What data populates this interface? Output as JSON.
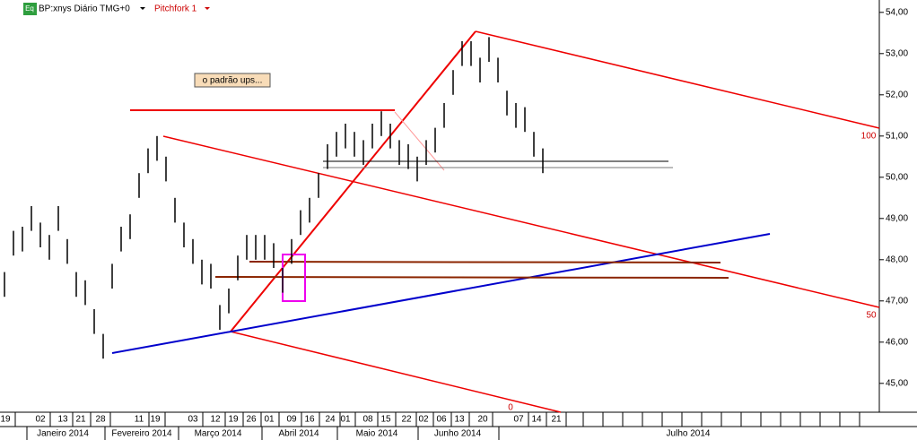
{
  "header": {
    "icon": "Eq",
    "symbol": "BP:xnys Diário TMG+0",
    "tool": "Pitchfork 1"
  },
  "annotation": "o padrão ups...",
  "pitchfork_labels": [
    "100",
    "50",
    "0"
  ],
  "chart_data": {
    "type": "range-bar",
    "high": [
      47.7,
      48.7,
      48.8,
      49.3,
      48.9,
      48.6,
      49.3,
      48.5,
      47.7,
      47.5,
      46.8,
      46.2,
      47.9,
      48.8,
      49.1,
      50.1,
      50.7,
      51.0,
      50.5,
      49.5,
      48.9,
      48.5,
      48.0,
      47.9,
      46.9,
      47.3,
      48.1,
      48.6,
      48.6,
      48.6,
      48.4,
      47.8,
      48.5,
      49.2,
      49.5,
      50.1,
      50.8,
      51.1,
      51.3,
      51.1,
      50.9,
      51.3,
      51.6,
      51.3,
      50.9,
      50.8,
      50.5,
      50.9,
      51.2,
      51.8,
      52.6,
      53.3,
      53.3,
      52.9,
      53.4,
      52.9,
      52.1,
      51.8,
      51.7,
      51.1,
      50.7
    ],
    "low": [
      47.1,
      48.1,
      48.2,
      48.7,
      48.3,
      48.0,
      48.7,
      47.9,
      47.1,
      46.9,
      46.2,
      45.6,
      47.3,
      48.2,
      48.5,
      49.5,
      50.1,
      50.4,
      49.9,
      48.9,
      48.3,
      47.9,
      47.4,
      47.3,
      46.3,
      46.7,
      47.5,
      48.0,
      48.0,
      48.0,
      47.8,
      47.2,
      47.9,
      48.6,
      48.9,
      49.5,
      50.2,
      50.5,
      50.7,
      50.5,
      50.3,
      50.7,
      51.0,
      50.7,
      50.3,
      50.2,
      49.9,
      50.3,
      50.6,
      51.2,
      52.0,
      52.7,
      52.7,
      52.3,
      52.8,
      52.3,
      51.5,
      51.2,
      51.1,
      50.5,
      50.1
    ],
    "color": "#000000",
    "ylim": [
      44.3,
      54.3
    ],
    "yticks": [
      {
        "value": 45,
        "label": "45,00"
      },
      {
        "value": 46,
        "label": "46,00"
      },
      {
        "value": 47,
        "label": "47,00"
      },
      {
        "value": 48,
        "label": "48,00"
      },
      {
        "value": 49,
        "label": "49,00"
      },
      {
        "value": 50,
        "label": "50,00"
      },
      {
        "value": 51,
        "label": "51,00"
      },
      {
        "value": 52,
        "label": "52,00"
      },
      {
        "value": 53,
        "label": "53,00"
      },
      {
        "value": 54,
        "label": "54,00"
      }
    ],
    "day_labels": [
      "19",
      "02",
      "13",
      "21",
      "28",
      "11",
      "19",
      "03",
      "12",
      "19",
      "26",
      "01",
      "09",
      "16",
      "24",
      "01",
      "08",
      "15",
      "22",
      "02",
      "06",
      "13",
      "20",
      "07",
      "14",
      "21"
    ],
    "month_labels": [
      "Janeiro 2014",
      "Fevereiro 2014",
      "Março 2014",
      "Abril 2014",
      "Maio 2014",
      "Junho 2014",
      "Julho 2014"
    ]
  }
}
